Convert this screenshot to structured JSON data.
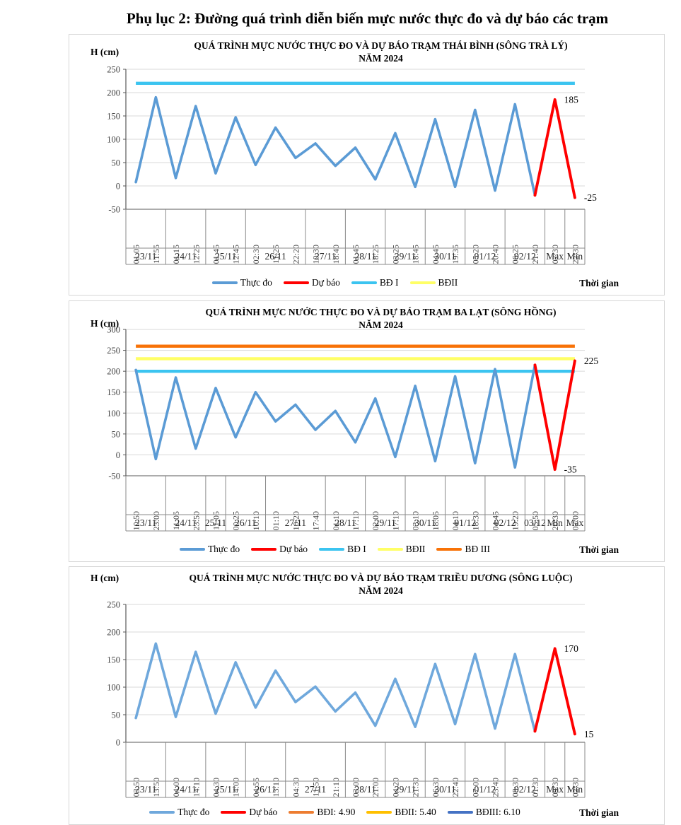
{
  "page": {
    "title": "Phụ lục 2: Đường quá trình diễn biến mực nước thực đo và dự báo các trạm"
  },
  "chart_data": [
    {
      "type": "line",
      "title": "QUÁ TRÌNH MỰC NƯỚC THỰC ĐO VÀ DỰ BÁO TRẠM THÁI BÌNH (SÔNG TRÀ LÝ)",
      "subtitle": "NĂM 2024",
      "y_axis": {
        "label": "H (cm)",
        "min": -50,
        "max": 250,
        "ticks": [
          250,
          200,
          150,
          100,
          50,
          0,
          -50
        ]
      },
      "x_axis": {
        "label": "Thời gian",
        "times": [
          "01:05",
          "11:55",
          "01:15",
          "12:25",
          "01:45",
          "12:45",
          "02:30",
          "11:25",
          "22:20",
          "10:30",
          "18:40",
          "01:45",
          "18:25",
          "03:25",
          "18:45",
          "04:45",
          "19:35",
          "05:20",
          "20:40",
          "06:25",
          "21:40",
          "07:30",
          "22:30"
        ],
        "date_groups": [
          {
            "label": "23/11",
            "count": 2
          },
          {
            "label": "24/11",
            "count": 2
          },
          {
            "label": "25/11",
            "count": 2
          },
          {
            "label": "26/11",
            "count": 3
          },
          {
            "label": "27/11",
            "count": 2
          },
          {
            "label": "28/11",
            "count": 2
          },
          {
            "label": "29/11",
            "count": 2
          },
          {
            "label": "30/11",
            "count": 2
          },
          {
            "label": "01/12",
            "count": 2
          },
          {
            "label": "02/12",
            "count": 2
          },
          {
            "label": "Max",
            "count": 1
          },
          {
            "label": "Min",
            "count": 1
          }
        ]
      },
      "series": [
        {
          "name": "Thực đo",
          "color": "#5B9BD5",
          "role": "measured",
          "values": [
            8,
            190,
            17,
            171,
            27,
            147,
            45,
            125,
            60,
            91,
            43,
            82,
            14,
            113,
            -2,
            143,
            -2,
            163,
            -10,
            175,
            -20
          ]
        },
        {
          "name": "Dự báo",
          "color": "#FF0000",
          "role": "forecast",
          "start_index": 20,
          "values": [
            -20,
            185,
            -25
          ]
        },
        {
          "name": "BĐ I",
          "color": "#3BC4F0",
          "role": "alarm",
          "value": 220
        },
        {
          "name": "BĐII",
          "color": "#FFFF66",
          "role": "alarm",
          "value": null
        }
      ],
      "annotations": [
        {
          "text": "185",
          "tick_index": 21,
          "value": 185
        },
        {
          "text": "-25",
          "tick_index": 22,
          "value": -25
        }
      ]
    },
    {
      "type": "line",
      "title": "QUÁ TRÌNH MỰC NƯỚC THỰC ĐO VÀ DỰ BÁO TRẠM BA LẠT (SÔNG HỒNG)",
      "subtitle": "NĂM 2024",
      "y_axis": {
        "label": "H (cm)",
        "min": -50,
        "max": 300,
        "ticks": [
          300,
          250,
          200,
          150,
          100,
          50,
          0,
          -50
        ]
      },
      "x_axis": {
        "label": "Thời gian",
        "times": [
          "10:50",
          "23:00",
          "11:05",
          "23:50",
          "11:05",
          "00:25",
          "10:10",
          "01:10",
          "10:20",
          "17:40",
          "01:10",
          "17:10",
          "02:00",
          "17:10",
          "03:10",
          "18:05",
          "04:10",
          "18:30",
          "04:45",
          "19:20",
          "05:50",
          "20:30",
          "07:00"
        ],
        "date_groups": [
          {
            "label": "23/11",
            "count": 2
          },
          {
            "label": "24/11",
            "count": 2
          },
          {
            "label": "25/11",
            "count": 1
          },
          {
            "label": "26/11",
            "count": 2
          },
          {
            "label": "27/11",
            "count": 3
          },
          {
            "label": "28/11",
            "count": 2
          },
          {
            "label": "29/11",
            "count": 2
          },
          {
            "label": "30/11",
            "count": 2
          },
          {
            "label": "01/12",
            "count": 2
          },
          {
            "label": "02/12",
            "count": 2
          },
          {
            "label": "03/12",
            "count": 1
          },
          {
            "label": "Min",
            "count": 1
          },
          {
            "label": "Max",
            "count": 1
          }
        ]
      },
      "series": [
        {
          "name": "Thực đo",
          "color": "#5B9BD5",
          "role": "measured",
          "values": [
            203,
            -10,
            185,
            15,
            160,
            42,
            150,
            80,
            120,
            60,
            105,
            30,
            135,
            -5,
            165,
            -15,
            188,
            -20,
            205,
            -30,
            215
          ]
        },
        {
          "name": "Dự báo",
          "color": "#FF0000",
          "role": "forecast",
          "start_index": 20,
          "values": [
            215,
            -35,
            225
          ]
        },
        {
          "name": "BĐ I",
          "color": "#3BC4F0",
          "role": "alarm",
          "value": 200
        },
        {
          "name": "BĐII",
          "color": "#FFFF66",
          "role": "alarm",
          "value": 230
        },
        {
          "name": "BĐ III",
          "color": "#F87207",
          "role": "alarm",
          "value": 260
        }
      ],
      "annotations": [
        {
          "text": "-35",
          "tick_index": 21,
          "value": -35
        },
        {
          "text": "225",
          "tick_index": 22,
          "value": 225
        }
      ]
    },
    {
      "type": "line",
      "title": "QUÁ TRÌNH MỰC NƯỚC THỰC ĐO VÀ DỰ BÁO TRẠM TRIỀU DƯƠNG (SÔNG LUỘC)",
      "subtitle": "NĂM 2024",
      "y_axis": {
        "label": "H (cm)",
        "min": 0,
        "max": 250,
        "ticks": [
          250,
          200,
          150,
          100,
          50,
          0
        ]
      },
      "x_axis": {
        "label": "Thời gian",
        "times": [
          "03:50",
          "13:50",
          "04:00",
          "14:10",
          "04:30",
          "14:00",
          "04:55",
          "13:10",
          "04:30",
          "11:50",
          "21:10",
          "03:00",
          "21:00",
          "04:20",
          "21:30",
          "06:30",
          "22:40",
          "07:00",
          "23:40",
          "08:30",
          "01:30",
          "09:30",
          "02:30"
        ],
        "date_groups": [
          {
            "label": "23/11",
            "count": 2
          },
          {
            "label": "24/11",
            "count": 2
          },
          {
            "label": "25/11",
            "count": 2
          },
          {
            "label": "26/11",
            "count": 2
          },
          {
            "label": "27/11",
            "count": 3
          },
          {
            "label": "28/11",
            "count": 2
          },
          {
            "label": "29/11",
            "count": 2
          },
          {
            "label": "30/11",
            "count": 2
          },
          {
            "label": "01/12",
            "count": 2
          },
          {
            "label": "02/12",
            "count": 2
          },
          {
            "label": "Max",
            "count": 1
          },
          {
            "label": "Min",
            "count": 1
          }
        ]
      },
      "series": [
        {
          "name": "Thực đo",
          "color": "#6FA8DC",
          "role": "measured",
          "values": [
            44,
            179,
            46,
            164,
            52,
            145,
            63,
            130,
            73,
            101,
            56,
            90,
            30,
            115,
            28,
            142,
            33,
            160,
            25,
            160,
            20
          ]
        },
        {
          "name": "Dự báo",
          "color": "#FF0000",
          "role": "forecast",
          "start_index": 20,
          "values": [
            20,
            170,
            15
          ]
        },
        {
          "name": "BĐI: 4.90",
          "color": "#ED7D31",
          "role": "alarm",
          "value": null
        },
        {
          "name": "BĐII: 5.40",
          "color": "#FFC000",
          "role": "alarm",
          "value": null
        },
        {
          "name": "BĐIII: 6.10",
          "color": "#4472C4",
          "role": "alarm",
          "value": null
        }
      ],
      "annotations": [
        {
          "text": "170",
          "tick_index": 21,
          "value": 170
        },
        {
          "text": "15",
          "tick_index": 22,
          "value": 15
        }
      ]
    }
  ]
}
